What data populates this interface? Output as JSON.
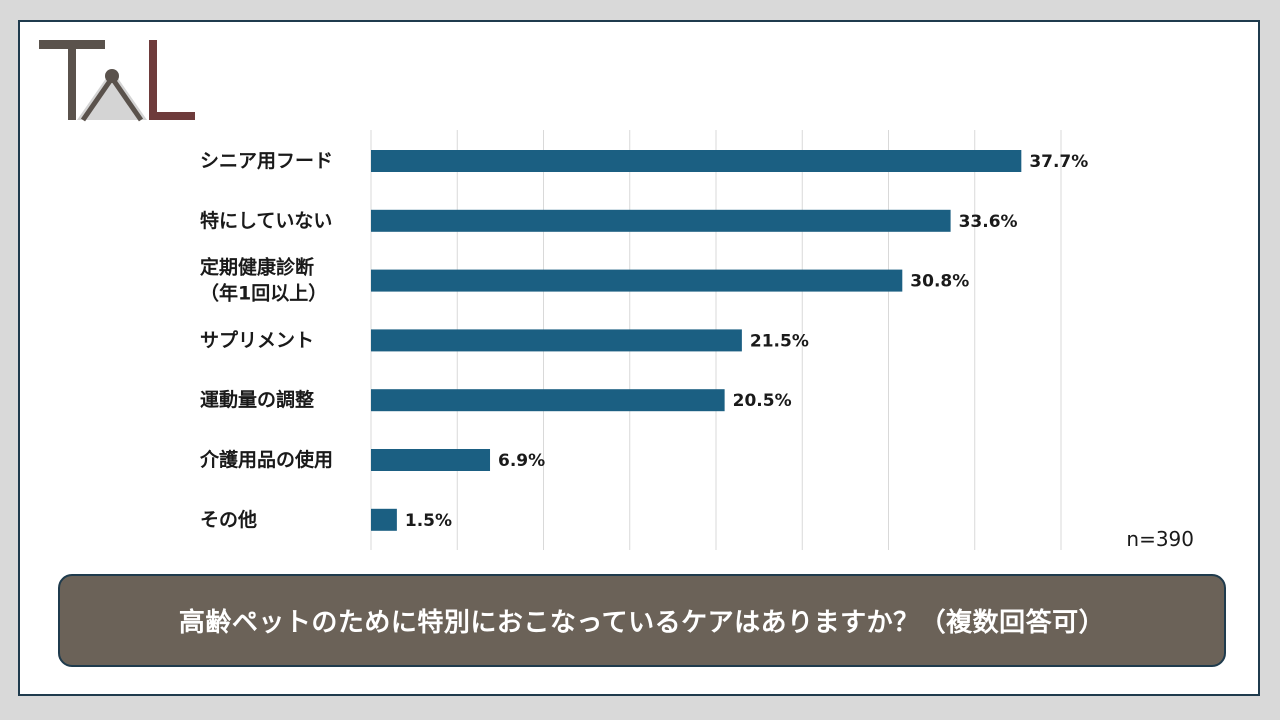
{
  "brand": {
    "logo_name": "TAL logo"
  },
  "chart_data": {
    "type": "bar",
    "orientation": "horizontal",
    "categories": [
      [
        "シニア用フード"
      ],
      [
        "特にしていない"
      ],
      [
        "定期健康診断",
        "（年1回以上）"
      ],
      [
        "サプリメント"
      ],
      [
        "運動量の調整"
      ],
      [
        "介護用品の使用"
      ],
      [
        "その他"
      ]
    ],
    "values": [
      37.7,
      33.6,
      30.8,
      21.5,
      20.5,
      6.9,
      1.5
    ],
    "value_labels": [
      "37.7%",
      "33.6%",
      "30.8%",
      "21.5%",
      "20.5%",
      "6.9%",
      "1.5%"
    ],
    "xlim": [
      0,
      40
    ],
    "grid": true,
    "bar_color": "#1b5f82",
    "sample_size": "n=390"
  },
  "question": "高齢ペットのために特別におこなっているケアはありますか？（複数回答可）"
}
